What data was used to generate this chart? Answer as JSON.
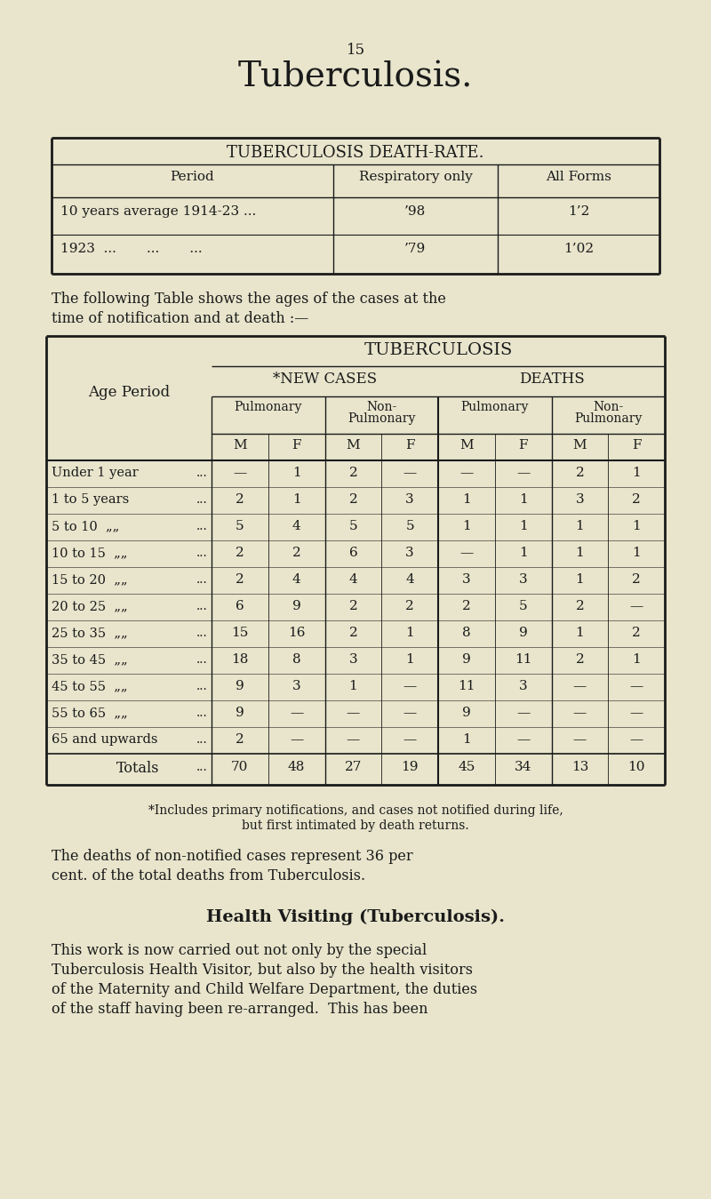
{
  "bg_color": "#e8e5cc",
  "text_color": "#1a1a1a",
  "page_num": "15",
  "main_title": "Tuberculosis.",
  "table1_title": "TUBERCULOSIS DEATH-RATE.",
  "table1_col1_header": "Period",
  "table1_col2_header": "Respiratory only",
  "table1_col3_header": "All Forms",
  "table1_rows": [
    [
      "10 years average 1914-23 ...",
      "’98",
      "1’2"
    ],
    [
      "1923  ...       ...       ...",
      "’79",
      "1’02"
    ]
  ],
  "para1_line1": "The following Table shows the ages of the cases at the",
  "para1_line2": "time of notification and at death :—",
  "table2_main_title": "TUBERCULOSIS",
  "table2_section1": "*NEW CASES",
  "table2_section2": "DEATHS",
  "table2_sub1": "Pulmonary",
  "table2_sub2_l1": "Non-",
  "table2_sub2_l2": "Pulmonary",
  "table2_sub3": "Pulmonary",
  "table2_sub4_l1": "Non-",
  "table2_sub4_l2": "Pulmonary",
  "table2_mf": [
    "M",
    "F",
    "M",
    "F",
    "M",
    "F",
    "M",
    "F"
  ],
  "table2_age_header_l1": "Age Period",
  "table2_rows": [
    [
      "Under 1 year",
      "—",
      "1",
      "2",
      "—",
      "—",
      "—",
      "2",
      "1"
    ],
    [
      "1 to 5 years",
      "2",
      "1",
      "2",
      "3",
      "1",
      "1",
      "3",
      "2"
    ],
    [
      "5 to 10  „„",
      "5",
      "4",
      "5",
      "5",
      "1",
      "1",
      "1",
      "1"
    ],
    [
      "10 to 15  „„",
      "2",
      "2",
      "6",
      "3",
      "—",
      "1",
      "1",
      "1"
    ],
    [
      "15 to 20  „„",
      "2",
      "4",
      "4",
      "4",
      "3",
      "3",
      "1",
      "2"
    ],
    [
      "20 to 25  „„",
      "6",
      "9",
      "2",
      "2",
      "2",
      "5",
      "2",
      "—"
    ],
    [
      "25 to 35  „„",
      "15",
      "16",
      "2",
      "1",
      "8",
      "9",
      "1",
      "2"
    ],
    [
      "35 to 45  „„",
      "18",
      "8",
      "3",
      "1",
      "9",
      "11",
      "2",
      "1"
    ],
    [
      "45 to 55  „„",
      "9",
      "3",
      "1",
      "—",
      "11",
      "3",
      "—",
      "—"
    ],
    [
      "55 to 65  „„",
      "9",
      "—",
      "—",
      "—",
      "9",
      "—",
      "—",
      "—"
    ],
    [
      "65 and upwards",
      "2",
      "—",
      "—",
      "—",
      "1",
      "—",
      "—",
      "—"
    ]
  ],
  "table2_totals": [
    "Totals",
    "70",
    "48",
    "27",
    "19",
    "45",
    "34",
    "13",
    "10"
  ],
  "footnote_l1": "*Includes primary notifications, and cases not notified during life,",
  "footnote_l2": "but first intimated by death returns.",
  "para2_l1": "The deaths of non-notified cases represent 36 per",
  "para2_l2": "cent. of the total deaths from Tuberculosis.",
  "section_title": "Health Visiting (Tuberculosis).",
  "para3_l1": "This work is now carried out not only by the special",
  "para3_l2": "Tuberculosis Health Visitor, but also by the health visitors",
  "para3_l3": "of the Maternity and Child Welfare Department, the duties",
  "para3_l4": "of the staff having been re-arranged.  This has been"
}
